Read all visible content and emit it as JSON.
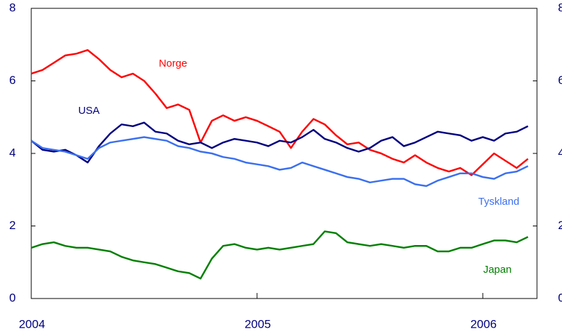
{
  "chart_data": {
    "type": "line",
    "x": [
      2004.0,
      2004.05,
      2004.1,
      2004.15,
      2004.2,
      2004.25,
      2004.3,
      2004.35,
      2004.4,
      2004.45,
      2004.5,
      2004.55,
      2004.6,
      2004.65,
      2004.7,
      2004.75,
      2004.8,
      2004.85,
      2004.9,
      2004.95,
      2005.0,
      2005.05,
      2005.1,
      2005.15,
      2005.2,
      2005.25,
      2005.3,
      2005.35,
      2005.4,
      2005.45,
      2005.5,
      2005.55,
      2005.6,
      2005.65,
      2005.7,
      2005.75,
      2005.8,
      2005.85,
      2005.9,
      2005.95,
      2006.0,
      2006.05,
      2006.1,
      2006.15,
      2006.2
    ],
    "series": [
      {
        "name": "Norge",
        "color": "#ff0000",
        "values": [
          6.2,
          6.3,
          6.5,
          6.7,
          6.75,
          6.85,
          6.6,
          6.3,
          6.1,
          6.2,
          6.0,
          5.65,
          5.25,
          5.35,
          5.2,
          4.3,
          4.9,
          5.05,
          4.9,
          5.0,
          4.9,
          4.75,
          4.6,
          4.15,
          4.6,
          4.95,
          4.8,
          4.5,
          4.25,
          4.3,
          4.1,
          4.0,
          3.85,
          3.75,
          3.95,
          3.75,
          3.6,
          3.5,
          3.6,
          3.4,
          3.7,
          4.0,
          3.8,
          3.6,
          3.85
        ]
      },
      {
        "name": "USA",
        "color": "#000080",
        "values": [
          4.35,
          4.1,
          4.05,
          4.1,
          3.95,
          3.75,
          4.2,
          4.55,
          4.8,
          4.75,
          4.85,
          4.6,
          4.55,
          4.35,
          4.25,
          4.3,
          4.15,
          4.3,
          4.4,
          4.35,
          4.3,
          4.2,
          4.35,
          4.3,
          4.45,
          4.65,
          4.4,
          4.3,
          4.15,
          4.05,
          4.15,
          4.35,
          4.45,
          4.2,
          4.3,
          4.45,
          4.6,
          4.55,
          4.5,
          4.35,
          4.45,
          4.35,
          4.55,
          4.6,
          4.75
        ]
      },
      {
        "name": "Tyskland",
        "color": "#3a6ff0",
        "values": [
          4.35,
          4.15,
          4.1,
          4.05,
          3.95,
          3.85,
          4.15,
          4.3,
          4.35,
          4.4,
          4.45,
          4.4,
          4.35,
          4.2,
          4.15,
          4.05,
          4.0,
          3.9,
          3.85,
          3.75,
          3.7,
          3.65,
          3.55,
          3.6,
          3.75,
          3.65,
          3.55,
          3.45,
          3.35,
          3.3,
          3.2,
          3.25,
          3.3,
          3.3,
          3.15,
          3.1,
          3.25,
          3.35,
          3.45,
          3.45,
          3.35,
          3.3,
          3.45,
          3.5,
          3.65
        ]
      },
      {
        "name": "Japan",
        "color": "#008000",
        "values": [
          1.4,
          1.5,
          1.55,
          1.45,
          1.4,
          1.4,
          1.35,
          1.3,
          1.15,
          1.05,
          1.0,
          0.95,
          0.85,
          0.75,
          0.7,
          0.55,
          1.1,
          1.45,
          1.5,
          1.4,
          1.35,
          1.4,
          1.35,
          1.4,
          1.45,
          1.5,
          1.85,
          1.8,
          1.55,
          1.5,
          1.45,
          1.5,
          1.45,
          1.4,
          1.45,
          1.45,
          1.3,
          1.3,
          1.4,
          1.4,
          1.5,
          1.6,
          1.6,
          1.55,
          1.7
        ]
      }
    ],
    "xlim": [
      2004,
      2006.24
    ],
    "xticks": [
      2004,
      2005,
      2006
    ],
    "ylim": [
      0,
      8
    ],
    "yticks": [
      0,
      2,
      4,
      6,
      8
    ]
  }
}
